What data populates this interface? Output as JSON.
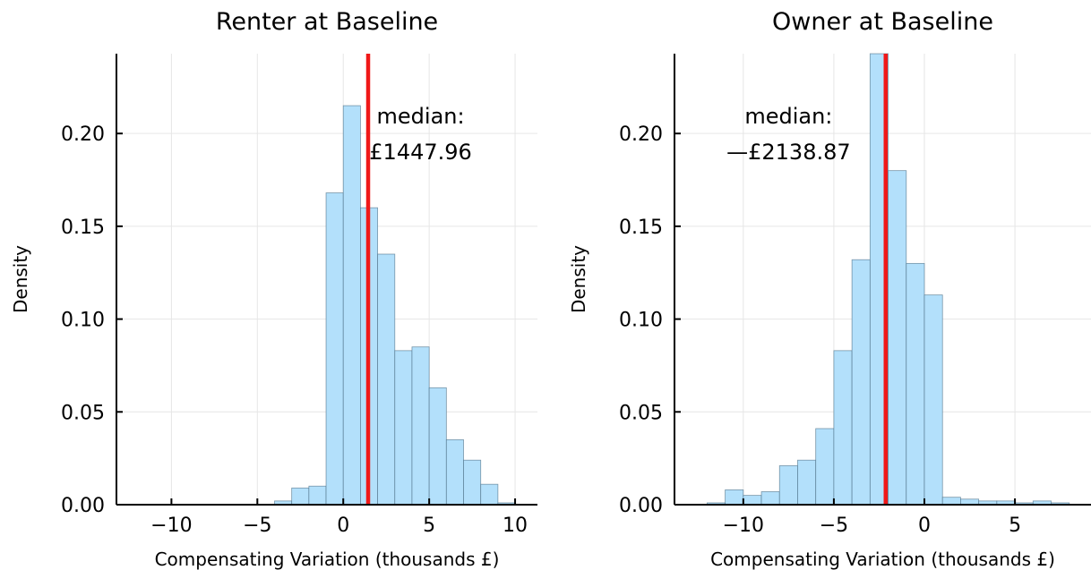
{
  "chart_data": [
    {
      "type": "histogram",
      "title": "Renter at Baseline",
      "xlabel": "Compensating Variation (thousands £)",
      "ylabel": "Density",
      "xlim": [
        -13.2,
        11.3
      ],
      "ylim": [
        0,
        0.243
      ],
      "xticks": [
        -10,
        -5,
        0,
        5,
        10
      ],
      "xtick_labels": [
        "−10",
        "−5",
        "0",
        "5",
        "10"
      ],
      "yticks": [
        0,
        0.05,
        0.1,
        0.15,
        0.2
      ],
      "ytick_labels": [
        "0.00",
        "0.05",
        "0.10",
        "0.15",
        "0.20"
      ],
      "grid": true,
      "bins": [
        {
          "x0": -4,
          "x1": -3,
          "value": 0.002
        },
        {
          "x0": -3,
          "x1": -2,
          "value": 0.009
        },
        {
          "x0": -2,
          "x1": -1,
          "value": 0.01
        },
        {
          "x0": -1,
          "x1": 0,
          "value": 0.168
        },
        {
          "x0": 0,
          "x1": 1,
          "value": 0.215
        },
        {
          "x0": 1,
          "x1": 2,
          "value": 0.16
        },
        {
          "x0": 2,
          "x1": 3,
          "value": 0.135
        },
        {
          "x0": 3,
          "x1": 4,
          "value": 0.083
        },
        {
          "x0": 4,
          "x1": 5,
          "value": 0.085
        },
        {
          "x0": 5,
          "x1": 6,
          "value": 0.063
        },
        {
          "x0": 6,
          "x1": 7,
          "value": 0.035
        },
        {
          "x0": 7,
          "x1": 8,
          "value": 0.024
        },
        {
          "x0": 8,
          "x1": 9,
          "value": 0.011
        },
        {
          "x0": 9,
          "x1": 10,
          "value": 0.001
        }
      ],
      "median": 1.44796,
      "median_label_line1": "median:",
      "median_label_line2": "£1447.96",
      "median_label_x": 4.5,
      "median_label_y1": 0.2055,
      "median_label_y2": 0.192,
      "bar_color": "#b3e0fb",
      "median_color": "#f01818"
    },
    {
      "type": "histogram",
      "title": "Owner at Baseline",
      "xlabel": "Compensating Variation (thousands £)",
      "ylabel": "Density",
      "xlim": [
        -13.8,
        9.2
      ],
      "ylim": [
        0,
        0.243
      ],
      "xticks": [
        -10,
        -5,
        0,
        5
      ],
      "xtick_labels": [
        "−10",
        "−5",
        "0",
        "5"
      ],
      "yticks": [
        0,
        0.05,
        0.1,
        0.15,
        0.2
      ],
      "ytick_labels": [
        "0.00",
        "0.05",
        "0.10",
        "0.15",
        "0.20"
      ],
      "grid": true,
      "bins": [
        {
          "x0": -12,
          "x1": -11,
          "value": 0.001
        },
        {
          "x0": -11,
          "x1": -10,
          "value": 0.008
        },
        {
          "x0": -10,
          "x1": -9,
          "value": 0.005
        },
        {
          "x0": -9,
          "x1": -8,
          "value": 0.007
        },
        {
          "x0": -8,
          "x1": -7,
          "value": 0.021
        },
        {
          "x0": -7,
          "x1": -6,
          "value": 0.024
        },
        {
          "x0": -6,
          "x1": -5,
          "value": 0.041
        },
        {
          "x0": -5,
          "x1": -4,
          "value": 0.083
        },
        {
          "x0": -4,
          "x1": -3,
          "value": 0.132
        },
        {
          "x0": -3,
          "x1": -2,
          "value": 0.243
        },
        {
          "x0": -2,
          "x1": -1,
          "value": 0.18
        },
        {
          "x0": -1,
          "x1": 0,
          "value": 0.13
        },
        {
          "x0": 0,
          "x1": 1,
          "value": 0.113
        },
        {
          "x0": 1,
          "x1": 2,
          "value": 0.004
        },
        {
          "x0": 2,
          "x1": 3,
          "value": 0.003
        },
        {
          "x0": 3,
          "x1": 4,
          "value": 0.002
        },
        {
          "x0": 4,
          "x1": 5,
          "value": 0.002
        },
        {
          "x0": 5,
          "x1": 6,
          "value": 0.001
        },
        {
          "x0": 6,
          "x1": 7,
          "value": 0.002
        },
        {
          "x0": 7,
          "x1": 8,
          "value": 0.001
        }
      ],
      "median": -2.13887,
      "median_label_line1": "median:",
      "median_label_line2": "—£2138.87",
      "median_label_x": -7.5,
      "median_label_y1": 0.2055,
      "median_label_y2": 0.192,
      "bar_color": "#b3e0fb",
      "median_color": "#f01818"
    }
  ]
}
